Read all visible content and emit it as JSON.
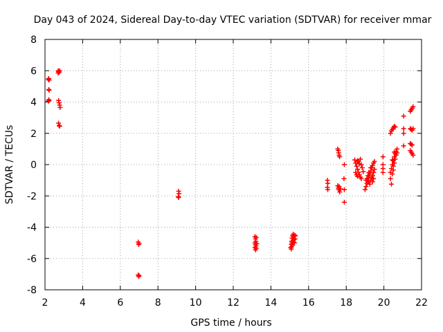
{
  "chart_data": {
    "type": "scatter",
    "title": "Day 043 of 2024, Sidereal Day-to-day VTEC variation (SDTVAR) for receiver mmar",
    "xlabel": "GPS time / hours",
    "ylabel": "SDTVAR / TECUs",
    "xlim": [
      2,
      22
    ],
    "ylim": [
      -8,
      8
    ],
    "xticks": [
      "2",
      "4",
      "6",
      "8",
      "10",
      "12",
      "14",
      "16",
      "18",
      "20",
      "22"
    ],
    "yticks": [
      "-8",
      "-6",
      "-4",
      "-2",
      "0",
      "2",
      "4",
      "6",
      "8"
    ],
    "grid": true,
    "marker": "+",
    "color": "#ff0000",
    "series": [
      {
        "name": "SDTVAR",
        "points": [
          [
            2.2,
            5.5
          ],
          [
            2.22,
            5.4
          ],
          [
            2.18,
            5.45
          ],
          [
            2.2,
            4.8
          ],
          [
            2.22,
            4.75
          ],
          [
            2.2,
            4.15
          ],
          [
            2.22,
            4.1
          ],
          [
            2.18,
            4.05
          ],
          [
            2.7,
            6.0
          ],
          [
            2.72,
            5.95
          ],
          [
            2.75,
            5.9
          ],
          [
            2.7,
            5.85
          ],
          [
            2.78,
            6.0
          ],
          [
            2.72,
            4.1
          ],
          [
            2.75,
            3.95
          ],
          [
            2.78,
            3.8
          ],
          [
            2.8,
            3.65
          ],
          [
            2.72,
            2.65
          ],
          [
            2.75,
            2.5
          ],
          [
            2.78,
            2.45
          ],
          [
            6.95,
            -4.95
          ],
          [
            7.0,
            -5.05
          ],
          [
            6.97,
            -5.1
          ],
          [
            6.95,
            -7.05
          ],
          [
            7.0,
            -7.1
          ],
          [
            6.98,
            -7.15
          ],
          [
            9.1,
            -1.7
          ],
          [
            9.12,
            -1.85
          ],
          [
            9.08,
            -2.05
          ],
          [
            9.1,
            -2.1
          ],
          [
            13.15,
            -4.6
          ],
          [
            13.18,
            -4.75
          ],
          [
            13.2,
            -4.9
          ],
          [
            13.15,
            -5.0
          ],
          [
            13.18,
            -5.1
          ],
          [
            13.2,
            -5.2
          ],
          [
            13.15,
            -5.3
          ],
          [
            13.18,
            -5.45
          ],
          [
            13.22,
            -4.65
          ],
          [
            13.25,
            -5.05
          ],
          [
            13.22,
            -5.35
          ],
          [
            15.05,
            -5.3
          ],
          [
            15.08,
            -5.1
          ],
          [
            15.1,
            -4.9
          ],
          [
            15.12,
            -4.7
          ],
          [
            15.15,
            -4.55
          ],
          [
            15.18,
            -4.45
          ],
          [
            15.2,
            -4.6
          ],
          [
            15.22,
            -4.8
          ],
          [
            15.25,
            -5.0
          ],
          [
            15.1,
            -5.25
          ],
          [
            15.15,
            -5.15
          ],
          [
            15.2,
            -4.95
          ],
          [
            15.25,
            -4.5
          ],
          [
            15.28,
            -4.75
          ],
          [
            15.3,
            -4.55
          ],
          [
            15.08,
            -5.4
          ],
          [
            15.12,
            -5.0
          ],
          [
            15.18,
            -4.85
          ],
          [
            17.0,
            -1.0
          ],
          [
            17.02,
            -1.2
          ],
          [
            17.0,
            -1.45
          ],
          [
            17.02,
            -1.6
          ],
          [
            17.55,
            1.0
          ],
          [
            17.58,
            0.9
          ],
          [
            17.6,
            0.75
          ],
          [
            17.62,
            0.6
          ],
          [
            17.65,
            0.5
          ],
          [
            17.55,
            -1.35
          ],
          [
            17.58,
            -1.5
          ],
          [
            17.6,
            -1.6
          ],
          [
            17.62,
            -1.4
          ],
          [
            17.65,
            -1.75
          ],
          [
            17.7,
            -1.55
          ],
          [
            17.9,
            0.0
          ],
          [
            17.88,
            -0.9
          ],
          [
            17.9,
            -1.6
          ],
          [
            17.9,
            -2.4
          ],
          [
            18.45,
            0.3
          ],
          [
            18.5,
            0.1
          ],
          [
            18.55,
            -0.1
          ],
          [
            18.6,
            -0.3
          ],
          [
            18.65,
            -0.5
          ],
          [
            18.7,
            -0.65
          ],
          [
            18.75,
            -0.8
          ],
          [
            18.8,
            -0.9
          ],
          [
            18.5,
            -0.5
          ],
          [
            18.55,
            -0.65
          ],
          [
            18.6,
            -0.75
          ],
          [
            18.65,
            0.2
          ],
          [
            18.7,
            0.05
          ],
          [
            18.75,
            0.35
          ],
          [
            18.8,
            0.0
          ],
          [
            18.85,
            -0.2
          ],
          [
            18.9,
            -0.45
          ],
          [
            18.6,
            0.25
          ],
          [
            19.0,
            -1.6
          ],
          [
            19.05,
            -1.4
          ],
          [
            19.1,
            -1.2
          ],
          [
            19.15,
            -1.0
          ],
          [
            19.2,
            -0.8
          ],
          [
            19.25,
            -0.6
          ],
          [
            19.3,
            -0.4
          ],
          [
            19.35,
            -0.2
          ],
          [
            19.4,
            -0.05
          ],
          [
            19.45,
            0.1
          ],
          [
            19.5,
            0.2
          ],
          [
            19.1,
            -0.9
          ],
          [
            19.15,
            -0.7
          ],
          [
            19.2,
            -1.1
          ],
          [
            19.25,
            -1.25
          ],
          [
            19.3,
            -1.0
          ],
          [
            19.35,
            -0.85
          ],
          [
            19.4,
            -0.7
          ],
          [
            19.45,
            -0.5
          ],
          [
            19.5,
            -0.3
          ],
          [
            19.05,
            -1.0
          ],
          [
            19.2,
            -0.5
          ],
          [
            19.3,
            -0.2
          ],
          [
            19.4,
            -1.1
          ],
          [
            19.45,
            -0.9
          ],
          [
            19.95,
            0.5
          ],
          [
            19.95,
            0.0
          ],
          [
            19.95,
            -0.25
          ],
          [
            19.95,
            -0.5
          ],
          [
            20.35,
            2.0
          ],
          [
            20.4,
            2.15
          ],
          [
            20.45,
            2.25
          ],
          [
            20.5,
            2.35
          ],
          [
            20.55,
            2.45
          ],
          [
            20.6,
            2.4
          ],
          [
            20.35,
            -0.5
          ],
          [
            20.4,
            -0.25
          ],
          [
            20.45,
            0.0
          ],
          [
            20.5,
            0.25
          ],
          [
            20.55,
            0.5
          ],
          [
            20.6,
            0.7
          ],
          [
            20.65,
            0.85
          ],
          [
            20.7,
            1.0
          ],
          [
            20.35,
            -0.9
          ],
          [
            20.4,
            -1.25
          ],
          [
            20.45,
            -0.6
          ],
          [
            20.5,
            -0.1
          ],
          [
            20.55,
            0.1
          ],
          [
            20.6,
            0.35
          ],
          [
            20.65,
            0.6
          ],
          [
            20.7,
            0.75
          ],
          [
            20.45,
            0.3
          ],
          [
            20.5,
            -0.35
          ],
          [
            20.55,
            0.8
          ],
          [
            21.05,
            3.1
          ],
          [
            21.05,
            2.3
          ],
          [
            21.05,
            2.0
          ],
          [
            21.05,
            1.2
          ],
          [
            21.4,
            3.4
          ],
          [
            21.45,
            3.5
          ],
          [
            21.5,
            3.6
          ],
          [
            21.55,
            3.7
          ],
          [
            21.4,
            2.3
          ],
          [
            21.45,
            2.25
          ],
          [
            21.5,
            2.2
          ],
          [
            21.55,
            2.3
          ],
          [
            21.4,
            1.35
          ],
          [
            21.45,
            1.3
          ],
          [
            21.5,
            1.25
          ],
          [
            21.4,
            0.9
          ],
          [
            21.45,
            0.8
          ],
          [
            21.5,
            0.7
          ],
          [
            21.55,
            0.6
          ]
        ]
      }
    ]
  }
}
